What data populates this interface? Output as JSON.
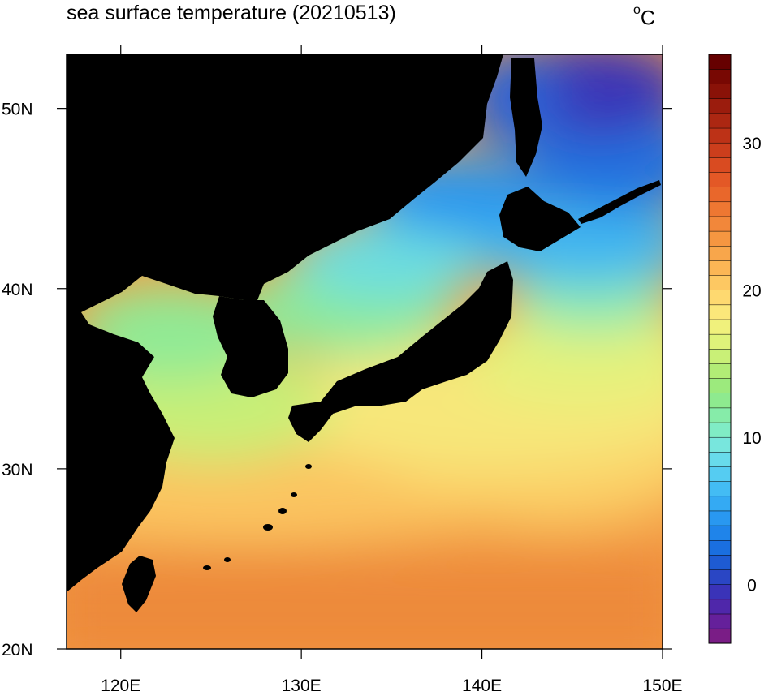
{
  "title": "sea surface temperature (20210513)",
  "unit": {
    "degree": "o",
    "letter": "C"
  },
  "map": {
    "projection": "cylindrical equidistant",
    "lon_range": [
      117,
      150
    ],
    "lat_range": [
      20,
      53
    ],
    "land_color": "#000000",
    "x_ticks": [
      {
        "value": 120,
        "label": "120E"
      },
      {
        "value": 130,
        "label": "130E"
      },
      {
        "value": 140,
        "label": "140E"
      },
      {
        "value": 150,
        "label": "150E"
      }
    ],
    "y_ticks": [
      {
        "value": 20,
        "label": "20N"
      },
      {
        "value": 30,
        "label": "30N"
      },
      {
        "value": 40,
        "label": "40N"
      },
      {
        "value": 50,
        "label": "50N"
      }
    ]
  },
  "colorbar": {
    "min": -4,
    "max": 36,
    "step": 1,
    "ticks": [
      {
        "value": 0,
        "label": "0"
      },
      {
        "value": 10,
        "label": "10"
      },
      {
        "value": 20,
        "label": "20"
      },
      {
        "value": 30,
        "label": "30"
      }
    ],
    "colors": [
      "#7a1d86",
      "#65209b",
      "#4f27aa",
      "#3a33b8",
      "#2a46c4",
      "#1e5bd3",
      "#1a6fe0",
      "#1f84ea",
      "#2998f0",
      "#34aaf3",
      "#43bcf4",
      "#55ccf2",
      "#68dbeb",
      "#78e6dd",
      "#80ecc5",
      "#86eca9",
      "#8eea8f",
      "#9cea7d",
      "#b2ec76",
      "#c9f077",
      "#dff37a",
      "#f0f17c",
      "#fbe77a",
      "#fed970",
      "#fdc862",
      "#fbb655",
      "#f8a64b",
      "#f59641",
      "#f2873a",
      "#ee7732",
      "#e9672b",
      "#e35826",
      "#d94b21",
      "#cc3e1c",
      "#bd3217",
      "#ac2712",
      "#9b1c0d",
      "#8a1208",
      "#780803",
      "#660000"
    ]
  },
  "chart_data": {
    "type": "heatmap",
    "title": "sea surface temperature (20210513)",
    "units": "°C",
    "x_axis": {
      "range": [
        117,
        150
      ],
      "ticks": [
        "120E",
        "130E",
        "140E",
        "150E"
      ]
    },
    "y_axis": {
      "range": [
        20,
        53
      ],
      "ticks": [
        "20N",
        "30N",
        "40N",
        "50N"
      ]
    },
    "colorbar_range": [
      -4,
      36
    ],
    "approx_values": [
      {
        "lon": 120,
        "lat": 21,
        "sst": 28
      },
      {
        "lon": 135,
        "lat": 24,
        "sst": 26
      },
      {
        "lon": 145,
        "lat": 22,
        "sst": 25
      },
      {
        "lon": 135,
        "lat": 30,
        "sst": 22
      },
      {
        "lon": 145,
        "lat": 35,
        "sst": 20
      },
      {
        "lon": 125,
        "lat": 35,
        "sst": 17
      },
      {
        "lon": 120,
        "lat": 38,
        "sst": 14
      },
      {
        "lon": 133,
        "lat": 39,
        "sst": 15
      },
      {
        "lon": 138,
        "lat": 43,
        "sst": 10
      },
      {
        "lon": 147,
        "lat": 42,
        "sst": 7
      },
      {
        "lon": 145,
        "lat": 50,
        "sst": 1
      }
    ]
  }
}
